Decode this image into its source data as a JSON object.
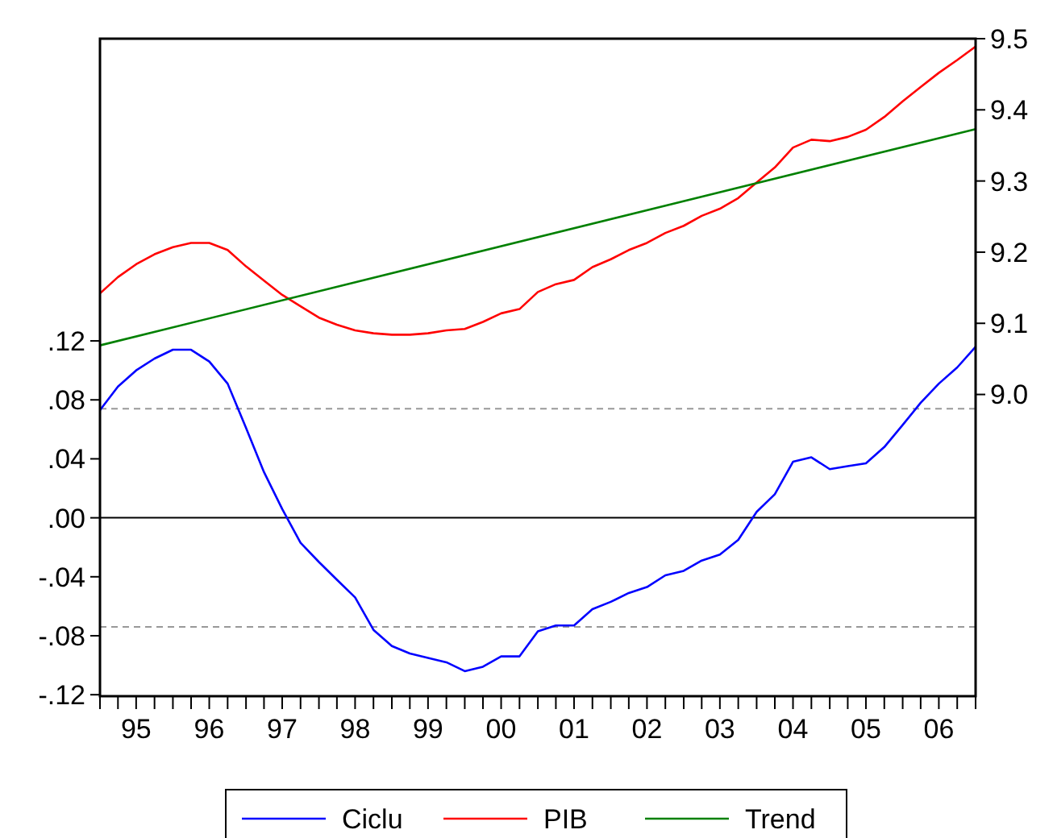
{
  "chart_data": {
    "type": "line",
    "x": [
      "1995-01",
      "1995-04",
      "1995-07",
      "1995-10",
      "1996-01",
      "1996-04",
      "1996-07",
      "1996-10",
      "1997-01",
      "1997-04",
      "1997-07",
      "1997-10",
      "1998-01",
      "1998-04",
      "1998-07",
      "1998-10",
      "1999-01",
      "1999-04",
      "1999-07",
      "1999-10",
      "2000-01",
      "2000-04",
      "2000-07",
      "2000-10",
      "2001-01",
      "2001-04",
      "2001-07",
      "2001-10",
      "2002-01",
      "2002-04",
      "2002-07",
      "2002-10",
      "2003-01",
      "2003-04",
      "2003-07",
      "2003-10",
      "2004-01",
      "2004-04",
      "2004-07",
      "2004-10",
      "2005-01",
      "2005-04",
      "2005-07",
      "2005-10",
      "2006-01",
      "2006-04",
      "2006-07",
      "2006-10",
      "2007-01"
    ],
    "series": [
      {
        "name": "Ciclu",
        "color": "#0000ff",
        "values": [
          0.073,
          0.089,
          0.1,
          0.108,
          0.114,
          0.114,
          0.106,
          0.091,
          0.061,
          0.031,
          0.006,
          -0.017,
          -0.03,
          -0.042,
          -0.054,
          -0.076,
          -0.087,
          -0.092,
          -0.095,
          -0.098,
          -0.104,
          -0.101,
          -0.094,
          -0.094,
          -0.077,
          -0.073,
          -0.073,
          -0.062,
          -0.057,
          -0.051,
          -0.047,
          -0.039,
          -0.036,
          -0.029,
          -0.025,
          -0.015,
          0.004,
          0.016,
          0.038,
          0.041,
          0.033,
          0.035,
          0.037,
          0.048,
          0.063,
          0.078,
          0.091,
          0.102,
          0.116
        ]
      },
      {
        "name": "PIB",
        "color": "#ff0000",
        "axis": "y2",
        "values": [
          9.142,
          9.165,
          9.183,
          9.197,
          9.207,
          9.213,
          9.213,
          9.203,
          9.18,
          9.16,
          9.14,
          9.124,
          9.108,
          9.098,
          9.09,
          9.086,
          9.084,
          9.084,
          9.086,
          9.09,
          9.092,
          9.102,
          9.114,
          9.12,
          9.144,
          9.155,
          9.161,
          9.179,
          9.19,
          9.203,
          9.213,
          9.227,
          9.237,
          9.251,
          9.261,
          9.276,
          9.298,
          9.319,
          9.347,
          9.358,
          9.356,
          9.362,
          9.372,
          9.39,
          9.412,
          9.432,
          9.452,
          9.47,
          9.489
        ]
      },
      {
        "name": "Trend",
        "color": "#008000",
        "axis": "y2",
        "x": [
          "1995-01",
          "2007-01"
        ],
        "values": [
          9.069,
          9.373
        ]
      }
    ],
    "xlim": [
      "1995-01",
      "2007-01"
    ],
    "xticks": [
      {
        "value": "1995-01",
        "label": null
      },
      {
        "value": "1995-04",
        "label": null
      },
      {
        "value": "1995-07",
        "label": null
      },
      {
        "value": "1995-10",
        "label": null
      },
      {
        "value": "1996-01",
        "label": null
      },
      {
        "value": "1996-04",
        "label": null
      },
      {
        "value": "1996-07",
        "label": null
      },
      {
        "value": "1996-10",
        "label": null
      },
      {
        "value": "1997-01",
        "label": null
      },
      {
        "value": "1997-04",
        "label": null
      },
      {
        "value": "1997-07",
        "label": null
      },
      {
        "value": "1997-10",
        "label": null
      },
      {
        "value": "1998-01",
        "label": null
      },
      {
        "value": "1998-04",
        "label": null
      },
      {
        "value": "1998-07",
        "label": null
      },
      {
        "value": "1998-10",
        "label": null
      },
      {
        "value": "1999-01",
        "label": null
      },
      {
        "value": "1999-04",
        "label": null
      },
      {
        "value": "1999-07",
        "label": null
      },
      {
        "value": "1999-10",
        "label": null
      },
      {
        "value": "2000-01",
        "label": null
      },
      {
        "value": "2000-04",
        "label": null
      },
      {
        "value": "2000-07",
        "label": null
      },
      {
        "value": "2000-10",
        "label": null
      },
      {
        "value": "2001-01",
        "label": null
      },
      {
        "value": "2001-04",
        "label": null
      },
      {
        "value": "2001-07",
        "label": null
      },
      {
        "value": "2001-10",
        "label": null
      },
      {
        "value": "2002-01",
        "label": null
      },
      {
        "value": "2002-04",
        "label": null
      },
      {
        "value": "2002-07",
        "label": null
      },
      {
        "value": "2002-10",
        "label": null
      },
      {
        "value": "2003-01",
        "label": null
      },
      {
        "value": "2003-04",
        "label": null
      },
      {
        "value": "2003-07",
        "label": null
      },
      {
        "value": "2003-10",
        "label": null
      },
      {
        "value": "2004-01",
        "label": null
      },
      {
        "value": "2004-04",
        "label": null
      },
      {
        "value": "2004-07",
        "label": null
      },
      {
        "value": "2004-10",
        "label": null
      },
      {
        "value": "2005-01",
        "label": null
      },
      {
        "value": "2005-04",
        "label": null
      },
      {
        "value": "2005-07",
        "label": null
      },
      {
        "value": "2005-10",
        "label": null
      },
      {
        "value": "2006-01",
        "label": null
      },
      {
        "value": "2006-04",
        "label": null
      },
      {
        "value": "2006-07",
        "label": null
      },
      {
        "value": "2006-10",
        "label": null
      },
      {
        "value": "2007-01",
        "label": null
      },
      {
        "value": "1995-07",
        "label": "95"
      },
      {
        "value": "1996-07",
        "label": "96"
      },
      {
        "value": "1997-07",
        "label": "97"
      },
      {
        "value": "1998-07",
        "label": "98"
      },
      {
        "value": "1999-07",
        "label": "99"
      },
      {
        "value": "2000-07",
        "label": "00"
      },
      {
        "value": "2001-07",
        "label": "01"
      },
      {
        "value": "2002-07",
        "label": "02"
      },
      {
        "value": "2003-07",
        "label": "03"
      },
      {
        "value": "2004-07",
        "label": "04"
      },
      {
        "value": "2005-07",
        "label": "05"
      },
      {
        "value": "2006-07",
        "label": "06"
      }
    ],
    "ylim": [
      -0.121,
      0.325
    ],
    "yticks": [
      {
        "value": -0.12,
        "label": "-.12"
      },
      {
        "value": -0.08,
        "label": "-.08"
      },
      {
        "value": -0.04,
        "label": "-.04"
      },
      {
        "value": 0,
        "label": ".00"
      },
      {
        "value": 0.04,
        "label": ".04"
      },
      {
        "value": 0.08,
        "label": ".08"
      },
      {
        "value": 0.12,
        "label": ".12"
      }
    ],
    "y2lim": [
      8.576,
      9.5
    ],
    "y2ticks": [
      {
        "value": 9,
        "label": "9.0"
      },
      {
        "value": 9.1,
        "label": "9.1"
      },
      {
        "value": 9.2,
        "label": "9.2"
      },
      {
        "value": 9.3,
        "label": "9.3"
      },
      {
        "value": 9.4,
        "label": "9.4"
      },
      {
        "value": 9.5,
        "label": "9.5"
      }
    ],
    "ref_lines": [
      {
        "axis": "y",
        "value": 0,
        "color": "#000000",
        "line_style": "solid"
      },
      {
        "axis": "y",
        "value": 0.074,
        "color": "#999999",
        "line_style": "dashed"
      },
      {
        "axis": "y",
        "value": -0.074,
        "color": "#999999",
        "line_style": "dashed"
      }
    ],
    "legend": "bottom",
    "grid": false,
    "marker": "none",
    "line_style": "solid"
  }
}
